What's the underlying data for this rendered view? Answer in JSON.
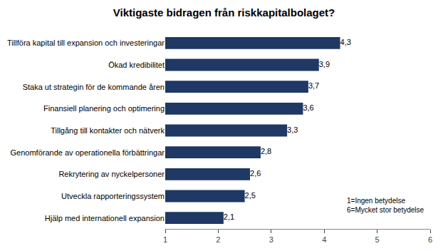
{
  "chart_data": {
    "type": "bar",
    "orientation": "horizontal",
    "title": "Viktigaste bidragen från riskkapitalbolaget?",
    "categories": [
      "Hjälp med internationell expansion",
      "Utveckla rapporteringssystem",
      "Rekrytering av nyckelpersoner",
      "Genomförande av operationella förbättringar",
      "Tillgång till kontakter och nätverk",
      "Finansiell planering och optimering",
      "Staka ut strategin för de kommande åren",
      "Ökad kredibilitet",
      "Tillföra kapital till expansion och investeringar"
    ],
    "values": [
      2.1,
      2.5,
      2.6,
      2.8,
      3.3,
      3.6,
      3.7,
      3.9,
      4.3
    ],
    "value_labels": [
      "2,1",
      "2,5",
      "2,6",
      "2,8",
      "3,3",
      "3,6",
      "3,7",
      "3,9",
      "4,3"
    ],
    "data_labels": true,
    "color": "#1F3864",
    "xlim": [
      1,
      6
    ],
    "xticks": [
      1,
      2,
      3,
      4,
      5,
      6
    ],
    "grid": false,
    "annotations": [
      "1=Ingen betydelse",
      "6=Mycket stor betydelse"
    ]
  }
}
